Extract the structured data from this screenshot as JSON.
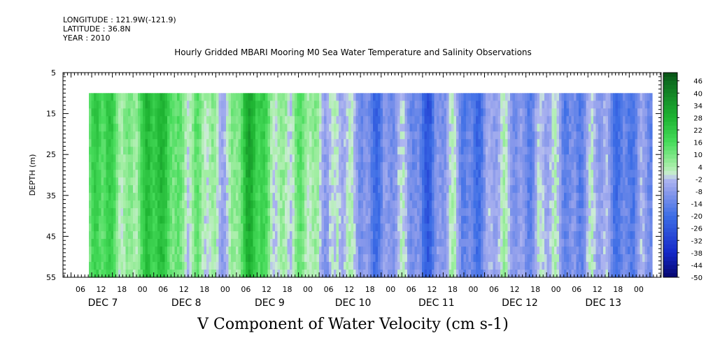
{
  "meta": {
    "longitude": "LONGITUDE : 121.9W(-121.9)",
    "latitude": "LATITUDE : 36.8N",
    "year": "YEAR : 2010"
  },
  "chart_data": {
    "type": "heatmap",
    "title": "Hourly Gridded MBARI Mooring M0 Sea Water Temperature and Salinity Observations",
    "xlabel": "V Component of Water Velocity (cm s-1)",
    "ylabel": "DEPTH (m)",
    "y_ticks": [
      5,
      15,
      25,
      35,
      45,
      55
    ],
    "ylim": [
      55,
      5
    ],
    "y_range_filled": [
      10,
      55
    ],
    "x_hour_ticks": [
      "06",
      "12",
      "18",
      "00",
      "06",
      "12",
      "18",
      "00",
      "06",
      "12",
      "18",
      "00",
      "06",
      "12",
      "18",
      "00",
      "06",
      "12",
      "18",
      "00",
      "06",
      "12",
      "18",
      "00",
      "06",
      "12",
      "18",
      "00"
    ],
    "x_day_labels": [
      "DEC  7",
      "DEC  8",
      "DEC  9",
      "DEC 10",
      "DEC 11",
      "DEC 12",
      "DEC 13"
    ],
    "colorbar_labels": [
      "46",
      "40",
      "34",
      "28",
      "22",
      "16",
      "10",
      "4",
      "-2",
      "-8",
      "-14",
      "-20",
      "-26",
      "-32",
      "-38",
      "-44",
      "-50"
    ],
    "colorbar_range": [
      -50,
      50
    ],
    "colormap": {
      "strong_positive": "#0d6b1f",
      "positive": "#2ed14a",
      "weak_positive": "#a8efa8",
      "weak_negative": "#aab2ef",
      "negative": "#3d6ee6",
      "strong_negative": "#06066e"
    },
    "column_means_approx": {
      "times": [
        "DEC 7 00",
        "DEC 7 06",
        "DEC 7 12",
        "DEC 7 18",
        "DEC 8 00",
        "DEC 8 06",
        "DEC 8 12",
        "DEC 8 18",
        "DEC 9 00",
        "DEC 9 06",
        "DEC 9 12",
        "DEC 9 18",
        "DEC 10 00",
        "DEC 10 06",
        "DEC 10 12",
        "DEC 10 18",
        "DEC 11 00",
        "DEC 11 06",
        "DEC 11 12",
        "DEC 11 18",
        "DEC 12 00",
        "DEC 12 06",
        "DEC 12 12",
        "DEC 12 18",
        "DEC 13 00",
        "DEC 13 06",
        "DEC 13 12",
        "DEC 13 18",
        "DEC 14 00"
      ],
      "values": [
        14,
        16,
        12,
        20,
        24,
        6,
        2,
        8,
        24,
        14,
        4,
        6,
        4,
        -10,
        -12,
        -12,
        -10,
        -18,
        -8,
        -14,
        -10,
        -6,
        -8,
        -8,
        -10,
        -8,
        -14,
        -12,
        -16
      ]
    }
  }
}
